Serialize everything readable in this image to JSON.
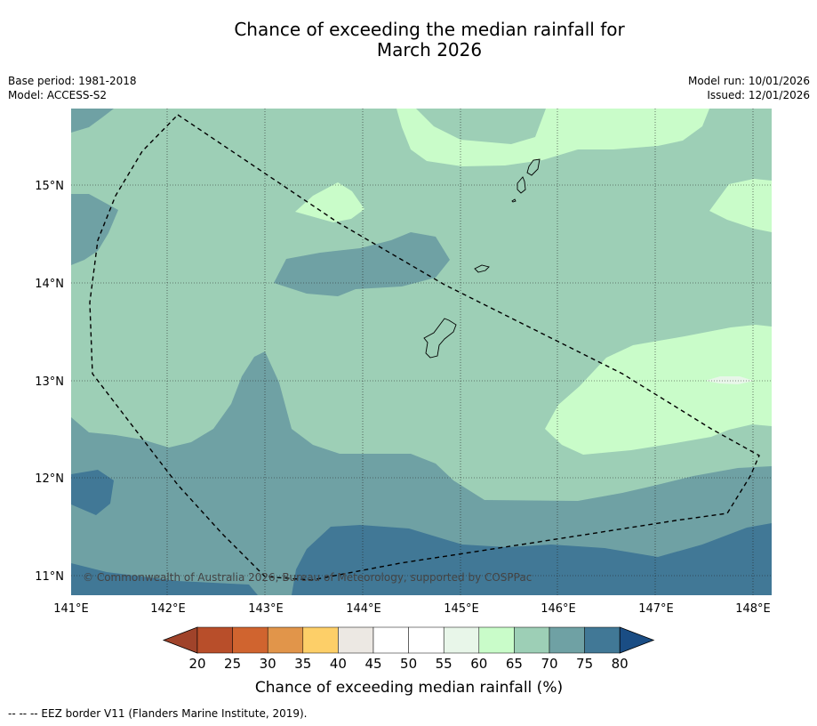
{
  "title_line1": "Chance of exceeding the median rainfall for",
  "title_line2": "March 2026",
  "base_period": "Base period: 1981-2018",
  "model": "Model: ACCESS-S2",
  "model_run": "Model run: 10/01/2026",
  "issued": "Issued: 12/01/2026",
  "copyright": "© Commonwealth of Australia 2026, Bureau of Meteorology, supported by COSPPac",
  "lon_labels": [
    "141°E",
    "142°E",
    "143°E",
    "144°E",
    "145°E",
    "146°E",
    "147°E",
    "148°E"
  ],
  "lat_labels": [
    "15°N",
    "14°N",
    "13°N",
    "12°N",
    "11°N"
  ],
  "colorbar": {
    "ticks": [
      "20",
      "25",
      "30",
      "35",
      "40",
      "45",
      "50",
      "55",
      "60",
      "65",
      "70",
      "75",
      "80"
    ],
    "colors": [
      "#b84e2a",
      "#d0642f",
      "#e1954a",
      "#fdcf68",
      "#ece8e3",
      "#ffffff",
      "#ffffff",
      "#e8f6e9",
      "#c9fcc9",
      "#9dcfb6",
      "#6fa1a4",
      "#417896"
    ],
    "under_color": "#a0432a",
    "over_color": "#1a4d84",
    "label": "Chance of exceeding median rainfall (%)"
  },
  "footnote": "--  --  -- EEZ border V11 (Flanders Marine Institute, 2019).",
  "map_colors": {
    "c65_70": "#9dcfb6",
    "c70_75": "#6fa1a4",
    "c75_80": "#417896",
    "c60_65": "#c9fcc9",
    "c55_60": "#e8f6e9"
  }
}
